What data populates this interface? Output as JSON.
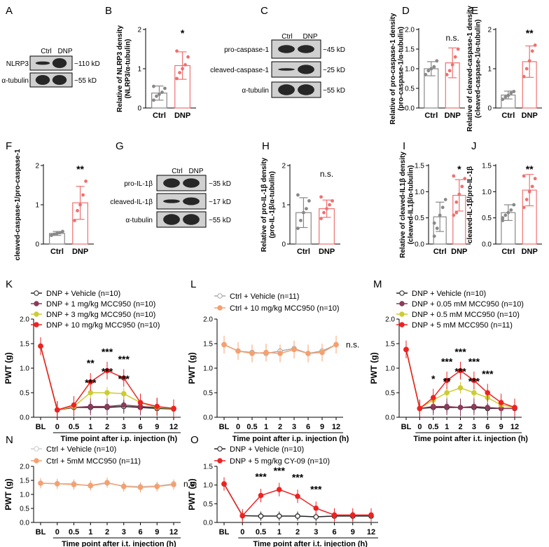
{
  "panels": {
    "A": {
      "label": "A",
      "lanes": [
        "Ctrl",
        "DNP"
      ],
      "rows": [
        "NLRP3",
        "α-tubulin"
      ],
      "kd": [
        "~110 kD",
        "~55 kD"
      ]
    },
    "C": {
      "label": "C",
      "lanes": [
        "Ctrl",
        "DNP"
      ],
      "rows": [
        "pro-caspase-1",
        "cleaved-caspase-1",
        "α-tubulin"
      ],
      "kd": [
        "~45 kD",
        "~25 kD",
        "~55 kD"
      ]
    },
    "G": {
      "label": "G",
      "lanes": [
        "Ctrl",
        "DNP"
      ],
      "rows": [
        "pro-IL-1β",
        "cleaved-IL-1β",
        "α-tubulin"
      ],
      "kd": [
        "~35 kD",
        "~17 kD",
        "~55 kD"
      ]
    }
  },
  "chart_data": [
    {
      "id": "B",
      "type": "bar",
      "categories": [
        "Ctrl",
        "DNP"
      ],
      "values": [
        0.38,
        1.08
      ],
      "errors": [
        0.18,
        0.35
      ],
      "points": [
        [
          0.2,
          0.3,
          0.35,
          0.4,
          0.5,
          0.55
        ],
        [
          0.75,
          0.9,
          1.0,
          1.1,
          1.3,
          1.45
        ]
      ],
      "ylabel": "Relative of NLRP3 density (NLRP3/α-tubulin)",
      "ylim": [
        0,
        2
      ],
      "yticks": [
        0,
        1,
        2
      ],
      "sig": "*"
    },
    {
      "id": "D",
      "type": "bar",
      "categories": [
        "Ctrl",
        "DNP"
      ],
      "values": [
        1.0,
        1.15
      ],
      "errors": [
        0.18,
        0.38
      ],
      "points": [
        [
          0.85,
          0.95,
          1.0,
          1.05,
          1.2
        ],
        [
          0.85,
          0.95,
          1.1,
          1.3,
          1.5
        ]
      ],
      "ylabel": "Relative of pro-caspase-1 density (pro-caspase-1/α-tubulin)",
      "ylim": [
        0,
        2.0
      ],
      "yticks": [
        "0.0",
        "0.5",
        "1.0",
        "1.5",
        "2.0"
      ],
      "sig": "n.s."
    },
    {
      "id": "E",
      "type": "bar",
      "categories": [
        "Ctrl",
        "DNP"
      ],
      "values": [
        0.33,
        1.18
      ],
      "errors": [
        0.1,
        0.4
      ],
      "points": [
        [
          0.22,
          0.28,
          0.32,
          0.38,
          0.42
        ],
        [
          0.8,
          1.0,
          1.2,
          1.45,
          1.6
        ]
      ],
      "ylabel": "Relative of cleaved-caspase-1 density (cleaved-caspase-1/α-tubulin)",
      "ylim": [
        0,
        2
      ],
      "yticks": [
        0,
        1,
        2
      ],
      "sig": "**"
    },
    {
      "id": "F",
      "type": "bar",
      "categories": [
        "Ctrl",
        "DNP"
      ],
      "values": [
        0.27,
        1.05
      ],
      "errors": [
        0.05,
        0.42
      ],
      "points": [
        [
          0.22,
          0.25,
          0.27,
          0.29,
          0.32
        ],
        [
          0.6,
          0.85,
          1.0,
          1.25,
          1.6
        ]
      ],
      "ylabel": "cleaved-caspase-1/pro-caspase-1",
      "ylim": [
        0,
        2
      ],
      "yticks": [
        0,
        1,
        2
      ],
      "sig": "**"
    },
    {
      "id": "H",
      "type": "bar",
      "categories": [
        "Ctrl",
        "DNP"
      ],
      "values": [
        0.8,
        0.9
      ],
      "errors": [
        0.38,
        0.22
      ],
      "points": [
        [
          0.4,
          0.6,
          0.8,
          0.9,
          1.1,
          1.25
        ],
        [
          0.65,
          0.8,
          0.9,
          1.0,
          1.1,
          1.2
        ]
      ],
      "ylabel": "Relative of pro-IL-1β density (pro-IL-1β/α-tubulin)",
      "ylim": [
        0,
        2
      ],
      "yticks": [
        0,
        1,
        2
      ],
      "sig": "n.s."
    },
    {
      "id": "I",
      "type": "bar",
      "categories": [
        "Ctrl",
        "DNP"
      ],
      "values": [
        0.52,
        0.93
      ],
      "errors": [
        0.28,
        0.3
      ],
      "points": [
        [
          0.15,
          0.3,
          0.55,
          0.7,
          0.85,
          0.4
        ],
        [
          0.55,
          0.8,
          0.95,
          1.1,
          1.25,
          1.3,
          0.6
        ]
      ],
      "ylabel": "Relative of cleaved-IL1β density (cleaved-IL1β/α-tubulin)",
      "ylim": [
        0,
        1.5
      ],
      "yticks": [
        "0.0",
        "0.5",
        "1.0",
        "1.5"
      ],
      "sig": "*"
    },
    {
      "id": "J",
      "type": "bar",
      "categories": [
        "Ctrl",
        "DNP"
      ],
      "values": [
        0.6,
        1.03
      ],
      "errors": [
        0.15,
        0.3
      ],
      "points": [
        [
          0.45,
          0.55,
          0.6,
          0.65,
          0.75,
          0.5
        ],
        [
          0.7,
          0.85,
          1.0,
          1.1,
          1.25,
          1.3
        ]
      ],
      "ylabel": "cleaved-IL-1β/pro-IL-1β",
      "ylim": [
        0,
        1.5
      ],
      "yticks": [
        "0.0",
        "0.5",
        "1.0",
        "1.5"
      ],
      "sig": "**"
    },
    {
      "id": "K",
      "type": "line",
      "x": [
        "BL",
        "0",
        "0.5",
        "1",
        "2",
        "3",
        "6",
        "9",
        "12"
      ],
      "xlabel": "Time point after i.p. injection (h)",
      "ylabel": "PWT (g)",
      "ylim": [
        0,
        2
      ],
      "yticks": [
        "0.0",
        "0.5",
        "1.0",
        "1.5",
        "2.0"
      ],
      "series": [
        {
          "name": "DNP + Vehicle (n=10)",
          "color": "#222222",
          "values": [
            1.45,
            0.15,
            0.2,
            0.2,
            0.2,
            0.22,
            0.2,
            0.18,
            0.17
          ]
        },
        {
          "name": "DNP + 1 mg/kg MCC950 (n=10)",
          "color": "#8a3a5a",
          "values": [
            1.45,
            0.15,
            0.2,
            0.22,
            0.22,
            0.25,
            0.22,
            0.2,
            0.18
          ]
        },
        {
          "name": "DNP + 3 mg/kg MCC950 (n=10)",
          "color": "#cccc33",
          "values": [
            1.45,
            0.15,
            0.22,
            0.5,
            0.5,
            0.48,
            0.3,
            0.2,
            0.18
          ]
        },
        {
          "name": "DNP + 10 mg/kg MCC950 (n=10)",
          "color": "#ee2222",
          "values": [
            1.45,
            0.15,
            0.25,
            0.72,
            0.95,
            0.8,
            0.3,
            0.22,
            0.18
          ]
        }
      ],
      "annotations": [
        [
          "1",
          "**"
        ],
        [
          "2",
          "***"
        ],
        [
          "3",
          "***"
        ],
        [
          "1",
          "***"
        ],
        [
          "2",
          "***"
        ],
        [
          "3",
          "***"
        ]
      ]
    },
    {
      "id": "L",
      "type": "line",
      "x": [
        "BL",
        "0",
        "0.5",
        "1",
        "2",
        "3",
        "6",
        "9",
        "12"
      ],
      "xlabel": "Time point after i.p. injection (h)",
      "ylabel": "PWT (g)",
      "ylim": [
        0,
        2
      ],
      "yticks": [
        "0.0",
        "0.5",
        "1.0",
        "1.5",
        "2.0"
      ],
      "series": [
        {
          "name": "Ctrl + Vehicle (n=11)",
          "color": "#aaaaaa",
          "values": [
            1.48,
            1.35,
            1.32,
            1.3,
            1.35,
            1.4,
            1.3,
            1.35,
            1.48
          ]
        },
        {
          "name": "Ctrl + 10 mg/kg MCC950 (n=10)",
          "color": "#f4a070",
          "values": [
            1.48,
            1.35,
            1.3,
            1.32,
            1.3,
            1.38,
            1.3,
            1.32,
            1.48
          ]
        }
      ],
      "sig": "n.s."
    },
    {
      "id": "M",
      "type": "line",
      "x": [
        "BL",
        "0",
        "0.5",
        "1",
        "2",
        "3",
        "6",
        "9",
        "12"
      ],
      "xlabel": "Time point after i.t. injection (h)",
      "ylabel": "PWT (g)",
      "ylim": [
        0,
        2
      ],
      "yticks": [
        "0.0",
        "0.5",
        "1.0",
        "1.5",
        "2.0"
      ],
      "series": [
        {
          "name": "DNP + Vehicle (n=10)",
          "color": "#222222",
          "values": [
            1.38,
            0.18,
            0.2,
            0.2,
            0.2,
            0.2,
            0.18,
            0.18,
            0.18
          ]
        },
        {
          "name": "DNP + 0.05 mM MCC950 (n=10)",
          "color": "#8a3a5a",
          "values": [
            1.38,
            0.18,
            0.22,
            0.22,
            0.2,
            0.22,
            0.2,
            0.18,
            0.18
          ]
        },
        {
          "name": "DNP + 0.5 mM MCC950 (n=10)",
          "color": "#cccc33",
          "values": [
            1.38,
            0.18,
            0.35,
            0.5,
            0.6,
            0.5,
            0.4,
            0.25,
            0.2
          ]
        },
        {
          "name": "DNP + 5 mM MCC950 (n=11)",
          "color": "#ee2222",
          "values": [
            1.38,
            0.18,
            0.4,
            0.75,
            0.95,
            0.75,
            0.5,
            0.3,
            0.2
          ]
        }
      ],
      "annotations": [
        [
          "0.5",
          "*"
        ],
        [
          "1",
          "***"
        ],
        [
          "2",
          "***"
        ],
        [
          "3",
          "***"
        ],
        [
          "1",
          "**"
        ],
        [
          "2",
          "***"
        ],
        [
          "3",
          "***"
        ],
        [
          "6",
          "***"
        ]
      ]
    },
    {
      "id": "N",
      "type": "line",
      "x": [
        "BL",
        "0",
        "0.5",
        "1",
        "2",
        "3",
        "6",
        "9",
        "12"
      ],
      "xlabel": "Time point after i.t. injection (h)",
      "ylabel": "PWT (g)",
      "ylim": [
        0,
        2
      ],
      "yticks": [
        "0.0",
        "0.5",
        "1.0",
        "1.5",
        "2.0"
      ],
      "series": [
        {
          "name": "Ctrl + Vehicle (n=10)",
          "color": "#cccccc",
          "values": [
            1.4,
            1.38,
            1.38,
            1.3,
            1.4,
            1.3,
            1.28,
            1.3,
            1.38
          ]
        },
        {
          "name": "Ctrl +  5mM MCC950 (n=11)",
          "color": "#f4a070",
          "values": [
            1.4,
            1.38,
            1.35,
            1.32,
            1.42,
            1.28,
            1.25,
            1.28,
            1.35
          ]
        }
      ],
      "sig": "n.s."
    },
    {
      "id": "O",
      "type": "line",
      "x": [
        "BL",
        "0",
        "0.5",
        "1",
        "2",
        "3",
        "6",
        "9",
        "12"
      ],
      "xlabel": "Time point after i.t. injection (h)",
      "ylabel": "PWT (g)",
      "ylim": [
        0,
        1.5
      ],
      "yticks": [
        "0.0",
        "0.5",
        "1.0",
        "1.5"
      ],
      "series": [
        {
          "name": "DNP + Vehicle (n=10)",
          "color": "#222222",
          "values": [
            1.03,
            0.18,
            0.17,
            0.17,
            0.17,
            0.15,
            0.17,
            0.17,
            0.17
          ]
        },
        {
          "name": "DNP + 5 mg/kg CY-09 (n=10)",
          "color": "#ee2222",
          "values": [
            1.03,
            0.18,
            0.72,
            0.88,
            0.7,
            0.38,
            0.2,
            0.2,
            0.2
          ]
        }
      ],
      "annotations": [
        [
          "0.5",
          "***"
        ],
        [
          "1",
          "***"
        ],
        [
          "2",
          "***"
        ],
        [
          "3",
          "***"
        ]
      ]
    }
  ]
}
